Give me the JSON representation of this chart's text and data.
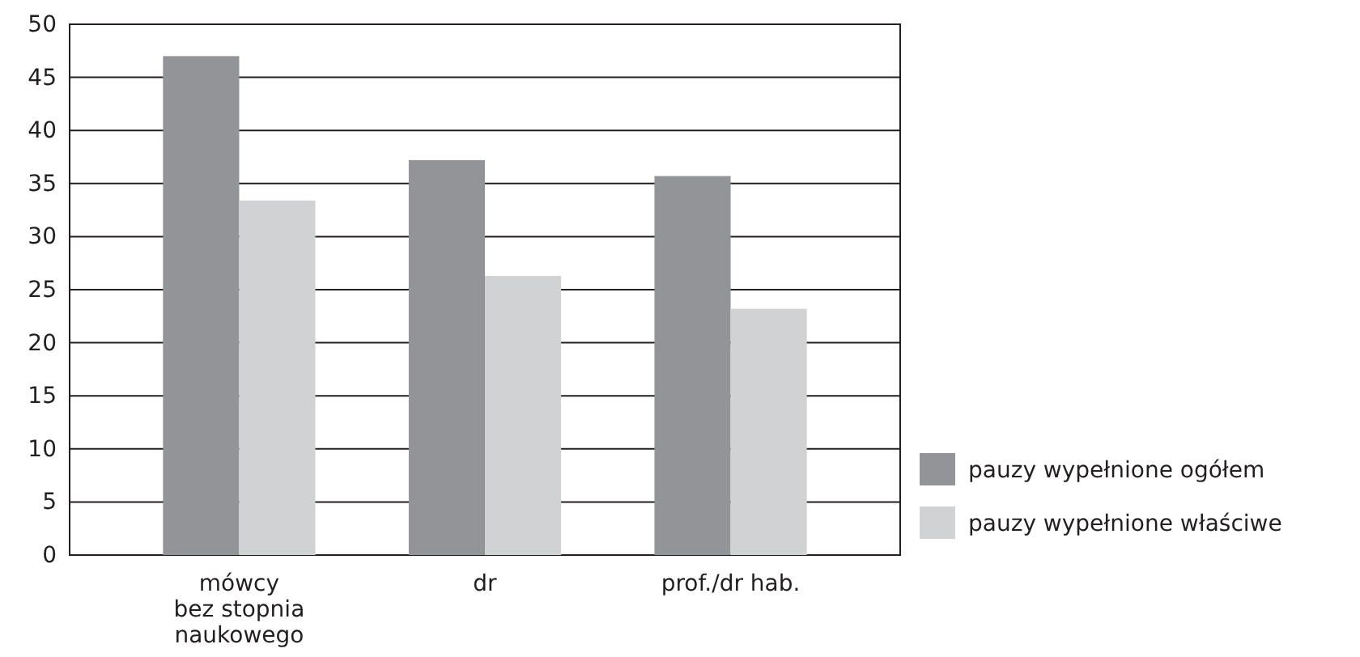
{
  "chart_data": {
    "type": "bar",
    "categories": [
      "mówcy\nbez stopnia\nnaukowego",
      "dr",
      "prof./dr hab."
    ],
    "series": [
      {
        "name": "pauzy wypełnione ogółem",
        "color": "#939497",
        "values": [
          47.0,
          37.2,
          35.7
        ]
      },
      {
        "name": "pauzy wypełnione właściwe",
        "color": "#d1d2d4",
        "values": [
          33.4,
          26.3,
          23.2
        ]
      }
    ],
    "ylim": [
      0,
      50
    ],
    "yticks": [
      0,
      5,
      10,
      15,
      20,
      25,
      30,
      35,
      40,
      45,
      50
    ],
    "grid": "y",
    "legend": "right"
  }
}
